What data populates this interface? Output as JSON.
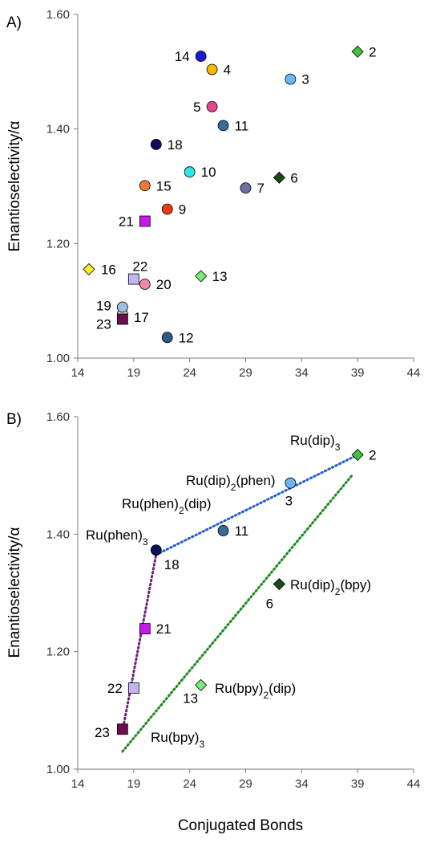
{
  "figure": {
    "shared_ylabel": "Enantioselectivity/α",
    "shared_xlabel": "Conjugated Bonds"
  },
  "chart_data": [
    {
      "type": "scatter",
      "panel_label": "A)",
      "title": "",
      "xlabel": "",
      "ylabel": "Enantioselectivity/α",
      "xlim": [
        14,
        44
      ],
      "ylim": [
        1.0,
        1.6
      ],
      "xticks": [
        "14",
        "19",
        "24",
        "29",
        "34",
        "39",
        "44"
      ],
      "yticks": [
        "1.00",
        "1.20",
        "1.40",
        "1.60"
      ],
      "grid": false,
      "points": [
        {
          "label": "2",
          "x": 39,
          "y": 1.535,
          "shape": "diamond",
          "color": "#3cc43c"
        },
        {
          "label": "3",
          "x": 33,
          "y": 1.487,
          "shape": "circle",
          "color": "#6cb6f4"
        },
        {
          "label": "4",
          "x": 26,
          "y": 1.504,
          "shape": "circle",
          "color": "#f7b500"
        },
        {
          "label": "5",
          "x": 26,
          "y": 1.439,
          "shape": "circle",
          "color": "#e8468e"
        },
        {
          "label": "6",
          "x": 32,
          "y": 1.315,
          "shape": "diamond",
          "color": "#1c4a16"
        },
        {
          "label": "7",
          "x": 29,
          "y": 1.297,
          "shape": "circle",
          "color": "#6c6ea4"
        },
        {
          "label": "9",
          "x": 22,
          "y": 1.26,
          "shape": "circle",
          "color": "#f03a10"
        },
        {
          "label": "10",
          "x": 24,
          "y": 1.325,
          "shape": "circle",
          "color": "#2fe6e6"
        },
        {
          "label": "11",
          "x": 27,
          "y": 1.406,
          "shape": "circle",
          "color": "#3b6a9a"
        },
        {
          "label": "12",
          "x": 22,
          "y": 1.036,
          "shape": "circle",
          "color": "#2e5a8a"
        },
        {
          "label": "13",
          "x": 25,
          "y": 1.143,
          "shape": "diamond",
          "color": "#74ee74"
        },
        {
          "label": "14",
          "x": 25,
          "y": 1.527,
          "shape": "circle",
          "color": "#1a1ad6"
        },
        {
          "label": "15",
          "x": 20,
          "y": 1.301,
          "shape": "circle",
          "color": "#f07a34"
        },
        {
          "label": "16",
          "x": 15,
          "y": 1.155,
          "shape": "diamond",
          "color": "#f6f022"
        },
        {
          "label": "17",
          "x": 18,
          "y": 1.077,
          "shape": "circle",
          "color": "#d9d6ce"
        },
        {
          "label": "18",
          "x": 21,
          "y": 1.373,
          "shape": "circle",
          "color": "#0e0e5a"
        },
        {
          "label": "19",
          "x": 18,
          "y": 1.089,
          "shape": "circle",
          "color": "#9ec0e6"
        },
        {
          "label": "20",
          "x": 20,
          "y": 1.129,
          "shape": "circle",
          "color": "#f28aa2"
        },
        {
          "label": "21",
          "x": 20,
          "y": 1.239,
          "shape": "square",
          "color": "#c41ae8"
        },
        {
          "label": "22",
          "x": 19,
          "y": 1.138,
          "shape": "square",
          "color": "#c4b4f0"
        },
        {
          "label": "23",
          "x": 18,
          "y": 1.068,
          "shape": "square",
          "color": "#6a0e4e"
        }
      ]
    },
    {
      "type": "scatter",
      "panel_label": "B)",
      "title": "",
      "xlabel": "Conjugated Bonds",
      "ylabel": "Enantioselectivity/α",
      "xlim": [
        14,
        44
      ],
      "ylim": [
        1.0,
        1.6
      ],
      "xticks": [
        "14",
        "19",
        "24",
        "29",
        "34",
        "39",
        "44"
      ],
      "yticks": [
        "1.00",
        "1.20",
        "1.40",
        "1.60"
      ],
      "grid": false,
      "points": [
        {
          "label": "2",
          "x": 39,
          "y": 1.535,
          "shape": "diamond",
          "color": "#3cc43c"
        },
        {
          "label": "3",
          "x": 33,
          "y": 1.487,
          "shape": "circle",
          "color": "#6cb6f4"
        },
        {
          "label": "11",
          "x": 27,
          "y": 1.406,
          "shape": "circle",
          "color": "#3b6a9a"
        },
        {
          "label": "18",
          "x": 21,
          "y": 1.373,
          "shape": "circle",
          "color": "#0e0e5a"
        },
        {
          "label": "6",
          "x": 32,
          "y": 1.315,
          "shape": "diamond",
          "color": "#1c4a16"
        },
        {
          "label": "21",
          "x": 20,
          "y": 1.239,
          "shape": "square",
          "color": "#c41ae8"
        },
        {
          "label": "13",
          "x": 25,
          "y": 1.143,
          "shape": "diamond",
          "color": "#74ee74"
        },
        {
          "label": "22",
          "x": 19,
          "y": 1.138,
          "shape": "square",
          "color": "#c4b4f0"
        },
        {
          "label": "23",
          "x": 18,
          "y": 1.068,
          "shape": "square",
          "color": "#6a0e4e"
        }
      ],
      "trendlines": [
        {
          "color": "#1f5fd0",
          "x": [
            21,
            39
          ],
          "y": [
            1.365,
            1.535
          ]
        },
        {
          "color": "#6e1e7e",
          "x": [
            18,
            21
          ],
          "y": [
            1.065,
            1.365
          ]
        },
        {
          "color": "#1e8a1e",
          "x": [
            18,
            38.5
          ],
          "y": [
            1.03,
            1.5
          ]
        }
      ],
      "annotations": [
        {
          "base": "Ru(dip)",
          "sub1": "3",
          "mid": "",
          "sub2": "",
          "tail": ""
        },
        {
          "base": "Ru(dip)",
          "sub1": "2",
          "mid": "(phen)",
          "sub2": "",
          "tail": ""
        },
        {
          "base": "Ru(phen)",
          "sub1": "2",
          "mid": "(dip)",
          "sub2": "",
          "tail": ""
        },
        {
          "base": "Ru(phen)",
          "sub1": "3",
          "mid": "",
          "sub2": "",
          "tail": ""
        },
        {
          "base": "Ru(dip)",
          "sub1": "2",
          "mid": "(bpy)",
          "sub2": "",
          "tail": ""
        },
        {
          "base": "Ru(bpy)",
          "sub1": "2",
          "mid": "(dip)",
          "sub2": "",
          "tail": ""
        },
        {
          "base": "Ru(bpy)",
          "sub1": "3",
          "mid": "",
          "sub2": "",
          "tail": ""
        }
      ]
    }
  ]
}
